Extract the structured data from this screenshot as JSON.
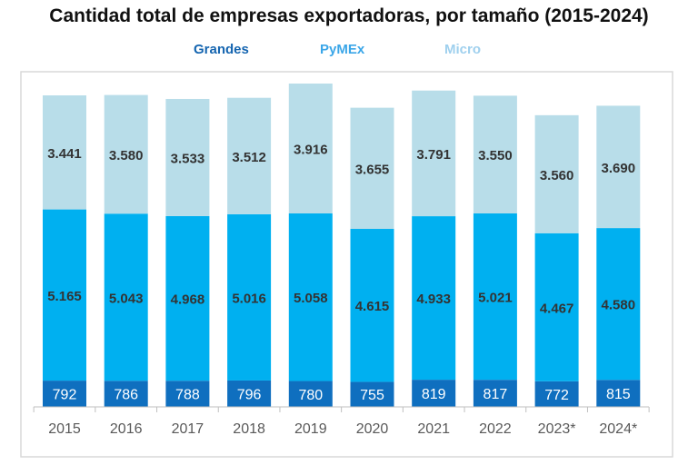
{
  "chart_data": {
    "type": "bar",
    "stacked": true,
    "title": "Cantidad total de empresas exportadoras, por tamaño (2015-2024)",
    "xlabel": "",
    "ylabel": "",
    "categories": [
      "2015",
      "2016",
      "2017",
      "2018",
      "2019",
      "2020",
      "2021",
      "2022",
      "2023*",
      "2024*"
    ],
    "series": [
      {
        "name": "Grandes",
        "color": "#0f6fbf",
        "values": [
          792,
          786,
          788,
          796,
          780,
          755,
          819,
          817,
          772,
          815
        ],
        "labels": [
          "792",
          "786",
          "788",
          "796",
          "780",
          "755",
          "819",
          "817",
          "772",
          "815"
        ]
      },
      {
        "name": "PyMEx",
        "color": "#00b0f0",
        "values": [
          5165,
          5043,
          4968,
          5016,
          5058,
          4615,
          4933,
          5021,
          4467,
          4580
        ],
        "labels": [
          "5.165",
          "5.043",
          "4.968",
          "5.016",
          "5.058",
          "4.615",
          "4.933",
          "5.021",
          "4.467",
          "4.580"
        ]
      },
      {
        "name": "Micro",
        "color": "#b8dde9",
        "values": [
          3441,
          3580,
          3533,
          3512,
          3916,
          3655,
          3791,
          3550,
          3560,
          3690
        ],
        "labels": [
          "3.441",
          "3.580",
          "3.533",
          "3.512",
          "3.916",
          "3.655",
          "3.791",
          "3.550",
          "3.560",
          "3.690"
        ]
      }
    ],
    "legend_placement": "top-center",
    "grid": false,
    "ylim": [
      0,
      10000
    ]
  }
}
